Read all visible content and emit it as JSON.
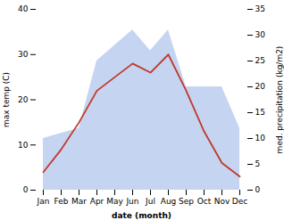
{
  "chart_data": {
    "type": "line",
    "categories": [
      "Jan",
      "Feb",
      "Mar",
      "Apr",
      "May",
      "Jun",
      "Jul",
      "Aug",
      "Sep",
      "Oct",
      "Nov",
      "Dec"
    ],
    "series": [
      {
        "type": "area",
        "axis": "y2",
        "color": "#c5d4f0",
        "values": [
          10,
          11,
          12,
          25,
          28,
          31,
          27,
          31,
          20,
          20,
          20,
          12
        ]
      },
      {
        "type": "line",
        "color": "#c0392b",
        "values": [
          4,
          9,
          15,
          22,
          25,
          28,
          26,
          30,
          22,
          13,
          6,
          3
        ]
      }
    ],
    "xlabel": "date (month)",
    "ylabel": "max temp (C)",
    "y2label": "med. precipitation (kg/m2)",
    "ylim": [
      0,
      40
    ],
    "yticks": [
      0,
      10,
      20,
      30,
      40
    ],
    "y2lim": [
      0,
      35
    ],
    "y2ticks": [
      0,
      5,
      10,
      15,
      20,
      25,
      30,
      35
    ],
    "grid": false
  }
}
